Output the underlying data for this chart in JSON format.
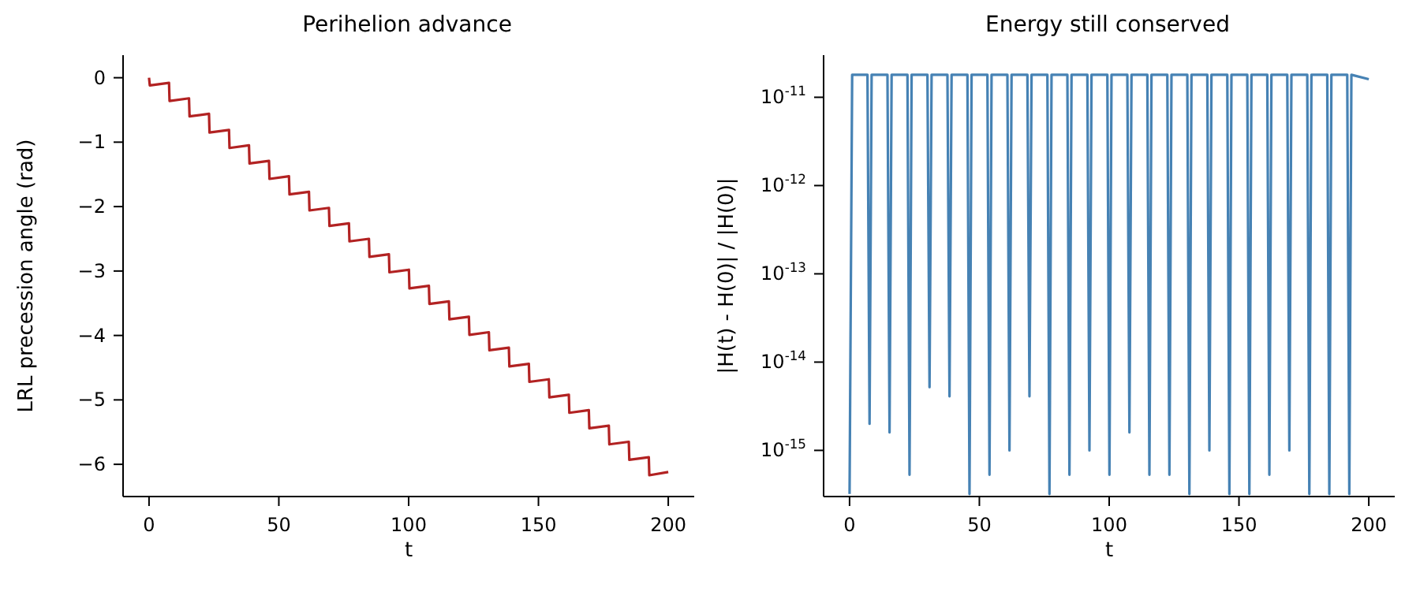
{
  "chart_data": [
    {
      "type": "line",
      "title": "Perihelion advance",
      "xlabel": "t",
      "ylabel": "LRL precession angle (rad)",
      "x": [
        0,
        0.3,
        7.7,
        7.9,
        15.4,
        15.6,
        23.1,
        23.3,
        30.8,
        31,
        38.5,
        38.7,
        46.2,
        46.4,
        53.9,
        54.1,
        61.6,
        61.8,
        69.3,
        69.5,
        77,
        77.2,
        84.7,
        84.9,
        92.4,
        92.6,
        100.1,
        100.3,
        107.8,
        108,
        115.5,
        115.7,
        123.2,
        123.4,
        130.9,
        131.1,
        138.6,
        138.8,
        146.3,
        146.5,
        154,
        154.2,
        161.7,
        161.9,
        169.4,
        169.6,
        177.1,
        177.3,
        184.8,
        185,
        192.5,
        192.7,
        200
      ],
      "series": [
        {
          "color": "#b22222",
          "values": [
            0,
            -0.12,
            -0.08,
            -0.36,
            -0.32,
            -0.6,
            -0.56,
            -0.85,
            -0.81,
            -1.09,
            -1.05,
            -1.33,
            -1.29,
            -1.57,
            -1.53,
            -1.81,
            -1.77,
            -2.06,
            -2.02,
            -2.3,
            -2.26,
            -2.54,
            -2.5,
            -2.78,
            -2.74,
            -3.02,
            -2.98,
            -3.27,
            -3.23,
            -3.51,
            -3.47,
            -3.75,
            -3.71,
            -3.99,
            -3.95,
            -4.23,
            -4.19,
            -4.48,
            -4.44,
            -4.72,
            -4.68,
            -4.96,
            -4.92,
            -5.2,
            -5.16,
            -5.44,
            -5.4,
            -5.69,
            -5.65,
            -5.93,
            -5.89,
            -6.17,
            -6.12
          ]
        }
      ],
      "xlim": [
        -10,
        210
      ],
      "xticks": [
        0,
        50,
        100,
        150,
        200
      ],
      "ylim": [
        -6.5,
        0.35
      ],
      "yticks": [
        0,
        -1,
        -2,
        -3,
        -4,
        -5,
        -6
      ],
      "grid": false
    },
    {
      "type": "line",
      "title": "Energy still conserved",
      "xlabel": "t",
      "ylabel": "|H(t) - H(0)| / |H(0)|",
      "x": [
        0,
        1,
        6.9,
        7.7,
        8.5,
        14.6,
        15.4,
        16.2,
        22.3,
        23.1,
        23.9,
        30,
        30.8,
        31.6,
        37.7,
        38.5,
        39.3,
        45.4,
        46.2,
        47,
        53.1,
        53.9,
        54.7,
        60.8,
        61.6,
        62.4,
        68.5,
        69.3,
        70.1,
        76.2,
        77,
        77.8,
        83.9,
        84.7,
        85.5,
        91.6,
        92.4,
        93.2,
        99.3,
        100.1,
        100.9,
        107,
        107.8,
        108.6,
        114.7,
        115.5,
        116.3,
        122.4,
        123.2,
        124,
        130.1,
        130.9,
        131.7,
        137.8,
        138.6,
        139.4,
        145.5,
        146.3,
        147.1,
        153.2,
        154,
        154.8,
        160.9,
        161.7,
        162.5,
        168.6,
        169.4,
        170.2,
        176.3,
        177.1,
        177.9,
        184,
        184.8,
        185.6,
        191.7,
        192.5,
        193.3,
        200
      ],
      "series": [
        {
          "color": "#4682b4",
          "values": [
            3.2e-16,
            1.8e-11,
            1.8e-11,
            2e-15,
            1.8e-11,
            1.8e-11,
            1.6e-15,
            1.8e-11,
            1.8e-11,
            5.3e-16,
            1.8e-11,
            1.8e-11,
            5.2e-15,
            1.8e-11,
            1.8e-11,
            4.1e-15,
            1.8e-11,
            1.8e-11,
            3.2e-16,
            1.8e-11,
            1.8e-11,
            5.3e-16,
            1.8e-11,
            1.8e-11,
            1e-15,
            1.8e-11,
            1.8e-11,
            4.1e-15,
            1.8e-11,
            1.8e-11,
            3.2e-16,
            1.8e-11,
            1.8e-11,
            5.3e-16,
            1.8e-11,
            1.8e-11,
            1e-15,
            1.8e-11,
            1.8e-11,
            5.3e-16,
            1.8e-11,
            1.8e-11,
            1.6e-15,
            1.8e-11,
            1.8e-11,
            5.3e-16,
            1.8e-11,
            1.8e-11,
            5.3e-16,
            1.8e-11,
            1.8e-11,
            3.2e-16,
            1.8e-11,
            1.8e-11,
            1e-15,
            1.8e-11,
            1.8e-11,
            3.2e-16,
            1.8e-11,
            1.8e-11,
            3.2e-16,
            1.8e-11,
            1.8e-11,
            5.3e-16,
            1.8e-11,
            1.8e-11,
            1e-15,
            1.8e-11,
            1.8e-11,
            3.2e-16,
            1.8e-11,
            1.8e-11,
            3.2e-16,
            1.8e-11,
            1.8e-11,
            3.2e-16,
            1.8e-11,
            1.6e-11
          ]
        }
      ],
      "xlim": [
        -10,
        210
      ],
      "xticks": [
        0,
        50,
        100,
        150,
        200
      ],
      "log": "y",
      "ylim": [
        3e-16,
        3e-11
      ],
      "yticks": [
        {
          "value": 1e-15,
          "label": "10$^{-15}$"
        },
        {
          "value": 1e-14,
          "label": "10$^{-14}$"
        },
        {
          "value": 1e-13,
          "label": "10$^{-13}$"
        },
        {
          "value": 1e-12,
          "label": "10$^{-12}$"
        },
        {
          "value": 1e-11,
          "label": "10$^{-11}$"
        }
      ],
      "grid": false
    }
  ]
}
